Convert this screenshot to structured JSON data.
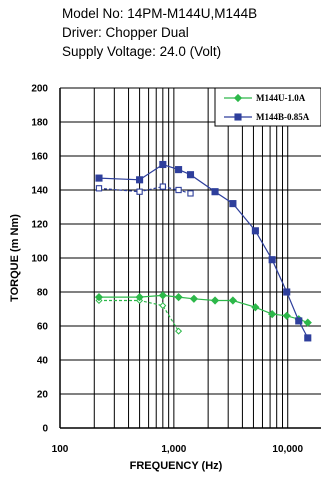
{
  "header": {
    "model": "Model No: 14PM-M144U,M144B",
    "driver": "Driver: Chopper Dual",
    "voltage": "Supply Voltage: 24.0 (Volt)"
  },
  "chart_data": {
    "type": "line",
    "xlabel": "FREQUENCY (Hz)",
    "ylabel": "TORQUE (m Nm)",
    "x_scale": "log",
    "xlim": [
      100,
      20000
    ],
    "ylim": [
      0,
      200
    ],
    "grid": true,
    "legend_position": "top-right",
    "x_ticks": [
      {
        "value": 100,
        "label": "100"
      },
      {
        "value": 1000,
        "label": "1,000"
      },
      {
        "value": 10000,
        "label": "10,000"
      }
    ],
    "y_ticks": [
      0,
      20,
      40,
      60,
      80,
      100,
      120,
      140,
      160,
      180,
      200
    ],
    "series": [
      {
        "name": "M144U-1.0A",
        "color": "#2db84a",
        "marker": "diamond",
        "pullout": {
          "x": [
            220,
            500,
            800,
            1100,
            1500,
            2300,
            3300,
            5200,
            7300,
            9800,
            12500,
            15000
          ],
          "y": [
            77,
            77,
            78,
            77,
            76,
            75,
            75,
            71,
            67,
            66,
            64,
            62
          ]
        },
        "pullin": {
          "x": [
            220,
            500,
            800,
            1100
          ],
          "y": [
            75,
            75,
            72,
            57
          ]
        }
      },
      {
        "name": "M144B-0.85A",
        "color": "#2e3f9c",
        "marker": "square",
        "pullout": {
          "x": [
            220,
            500,
            800,
            1100,
            1400,
            2300,
            3300,
            5200,
            7300,
            9800,
            12500,
            15000
          ],
          "y": [
            147,
            146,
            155,
            152,
            149,
            139,
            132,
            116,
            99,
            80,
            63,
            53
          ]
        },
        "pullin": {
          "x": [
            220,
            500,
            800,
            1100,
            1400
          ],
          "y": [
            141,
            139,
            142,
            140,
            138
          ]
        }
      }
    ]
  }
}
